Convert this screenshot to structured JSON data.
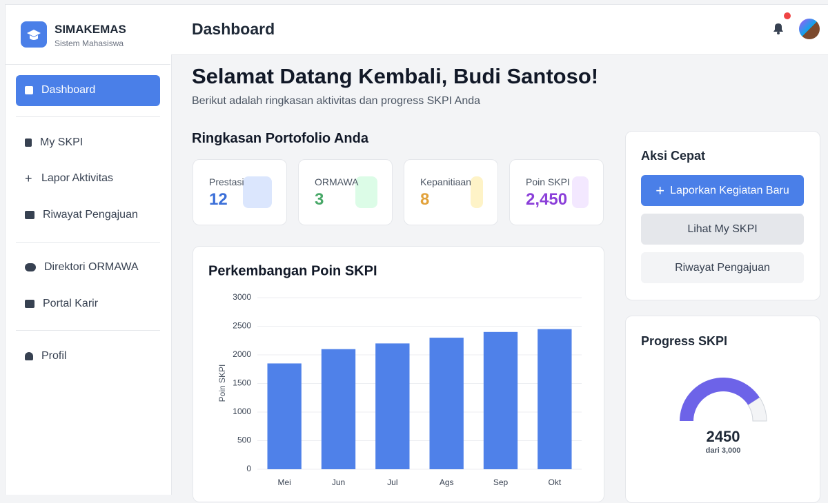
{
  "sidebar": {
    "brand": "SIMAKEMAS",
    "tagline": "Sistem Mahasiswa",
    "menu": [
      "Dashboard",
      "My SKPI",
      "Lapor Aktivitas",
      "Riwayat Pengajuan",
      "Direktori ORMAWA",
      "Portal Karir",
      "Profil"
    ]
  },
  "header": {
    "title": "Dashboard"
  },
  "welcome": {
    "title": "Selamat Datang Kembali, Budi Santoso!",
    "subtitle": "Berikut adalah ringkasan aktivitas dan progress SKPI Anda"
  },
  "summary": {
    "title": "Ringkasan Portofolio Anda",
    "cards": [
      {
        "label": "Prestasi",
        "value": "12"
      },
      {
        "label": "ORMAWA",
        "value": "3"
      },
      {
        "label": "Kepanitiaan",
        "value": "8"
      },
      {
        "label": "Poin SKPI",
        "value": "2,450"
      }
    ]
  },
  "chart_data": {
    "type": "bar",
    "title": "Perkembangan Poin SKPI",
    "y_label": "Poin SKPI",
    "categories": [
      "Mei",
      "Jun",
      "Jul",
      "Ags",
      "Sep",
      "Okt"
    ],
    "values": [
      1850,
      2100,
      2200,
      2300,
      2400,
      2450
    ],
    "color": "#4f81e9",
    "ylim": [
      0,
      3000
    ],
    "yticks": [
      0,
      500,
      1000,
      1500,
      2000,
      2500,
      3000
    ],
    "grid": true
  },
  "quick_actions": {
    "title": "Aksi Cepat",
    "buttons": [
      "Laporkan Kegiatan Baru",
      "Lihat My SKPI",
      "Riwayat Pengajuan"
    ]
  },
  "progress": {
    "title": "Progress SKPI",
    "value": 2450,
    "max": 3000,
    "max_label": "dari 3,000"
  }
}
